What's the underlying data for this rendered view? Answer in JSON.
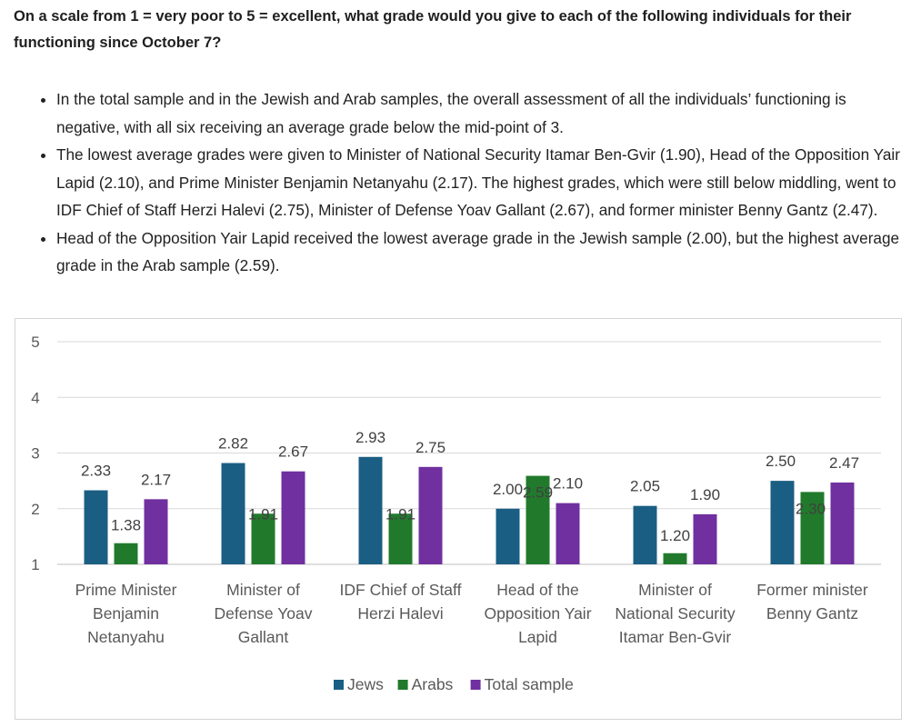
{
  "question": "On a scale from 1 = very poor to 5 = excellent, what grade would you give to each of the following individuals for their functioning since October 7?",
  "bullets": [
    "In the total sample and in the Jewish and Arab samples, the overall assessment of all the individuals’ functioning is negative, with all six receiving an average grade below the mid-point of 3.",
    "The lowest average grades were given to Minister of National Security Itamar Ben-Gvir (1.90), Head of the Opposition Yair Lapid (2.10), and Prime Minister Benjamin Netanyahu (2.17). The highest grades, which were still below middling, went to IDF Chief of Staff Herzi Halevi (2.75), Minister of Defense Yoav Gallant (2.67), and former minister Benny Gantz (2.47).",
    "Head of the Opposition Yair Lapid received the lowest average grade in the Jewish sample (2.00), but the highest average grade in the Arab sample (2.59)."
  ],
  "chart_data": {
    "type": "bar",
    "title": "",
    "xlabel": "",
    "ylabel": "",
    "ylim": [
      1,
      5
    ],
    "yticks": [
      "1",
      "2",
      "3",
      "4",
      "5"
    ],
    "grid": true,
    "legend_position": "bottom",
    "categories": [
      [
        "Prime Minister",
        "Benjamin",
        "Netanyahu"
      ],
      [
        "Minister of",
        "Defense Yoav",
        "Gallant"
      ],
      [
        "IDF Chief of Staff",
        "Herzi Halevi"
      ],
      [
        "Head of the",
        "Opposition Yair",
        "Lapid"
      ],
      [
        "Minister of",
        "National Security",
        "Itamar Ben-Gvir"
      ],
      [
        "Former minister",
        "Benny Gantz"
      ]
    ],
    "series": [
      {
        "name": "Jews",
        "color": "#1b5e83",
        "values": [
          2.33,
          2.82,
          2.93,
          2.0,
          2.05,
          2.5
        ],
        "labels": [
          "2.33",
          "2.82",
          "2.93",
          "2.00",
          "2.05",
          "2.50"
        ]
      },
      {
        "name": "Arabs",
        "color": "#217a2c",
        "values": [
          1.38,
          1.91,
          1.91,
          2.59,
          1.2,
          2.3
        ],
        "labels": [
          "1.38",
          "1.91",
          "1.91",
          "2.59",
          "1.20",
          "2.30"
        ]
      },
      {
        "name": "Total sample",
        "color": "#7030a0",
        "values": [
          2.17,
          2.67,
          2.75,
          2.1,
          1.9,
          2.47
        ],
        "labels": [
          "2.17",
          "2.67",
          "2.75",
          "2.10",
          "1.90",
          "2.47"
        ]
      }
    ]
  }
}
